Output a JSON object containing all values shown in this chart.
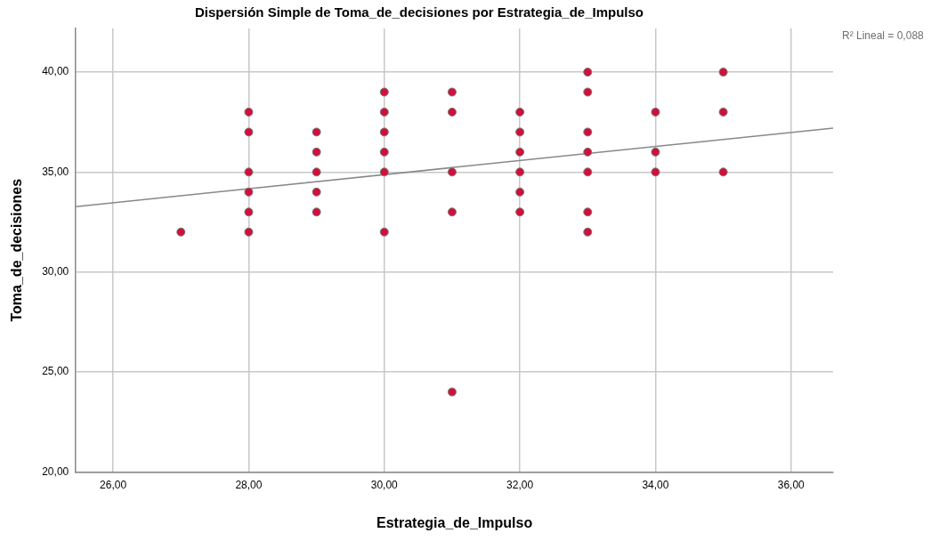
{
  "chart_data": {
    "type": "scatter",
    "title": "Dispersión Simple de Toma_de_decisiones por Estrategia_de_Impulso",
    "xlabel": "Estrategia_de_Impulso",
    "ylabel": "Toma_de_decisiones",
    "annotations": [
      "R² Lineal = 0,088"
    ],
    "xlim": [
      25.45,
      36.62
    ],
    "ylim": [
      20,
      42.18
    ],
    "xticks": [
      {
        "value": 26,
        "label": "26,00"
      },
      {
        "value": 28,
        "label": "28,00"
      },
      {
        "value": 30,
        "label": "30,00"
      },
      {
        "value": 32,
        "label": "32,00"
      },
      {
        "value": 34,
        "label": "34,00"
      },
      {
        "value": 36,
        "label": "36,00"
      }
    ],
    "yticks": [
      {
        "value": 20,
        "label": "20,00"
      },
      {
        "value": 25,
        "label": "25,00"
      },
      {
        "value": 30,
        "label": "30,00"
      },
      {
        "value": 35,
        "label": "35,00"
      },
      {
        "value": 40,
        "label": "40,00"
      }
    ],
    "grid": true,
    "series": [
      {
        "marker": "circle",
        "color": "#d0103a",
        "x": [
          27,
          28,
          28,
          28,
          28,
          28,
          28,
          29,
          29,
          29,
          29,
          29,
          30,
          30,
          30,
          30,
          30,
          30,
          31,
          31,
          31,
          31,
          31,
          32,
          32,
          32,
          32,
          32,
          32,
          33,
          33,
          33,
          33,
          33,
          33,
          33,
          34,
          34,
          34,
          35,
          35,
          35
        ],
        "values": [
          32,
          38,
          37,
          35,
          34,
          33,
          32,
          37,
          36,
          35,
          34,
          33,
          39,
          38,
          37,
          36,
          35,
          32,
          39,
          38,
          35,
          33,
          24,
          38,
          37,
          36,
          35,
          34,
          33,
          40,
          39,
          37,
          36,
          35,
          33,
          32,
          38,
          36,
          35,
          40,
          38,
          35
        ]
      },
      {
        "type": "line",
        "marker": "none",
        "color": "#888888",
        "x": [
          25.45,
          36.62
        ],
        "values": [
          33.27,
          37.2
        ]
      }
    ]
  }
}
